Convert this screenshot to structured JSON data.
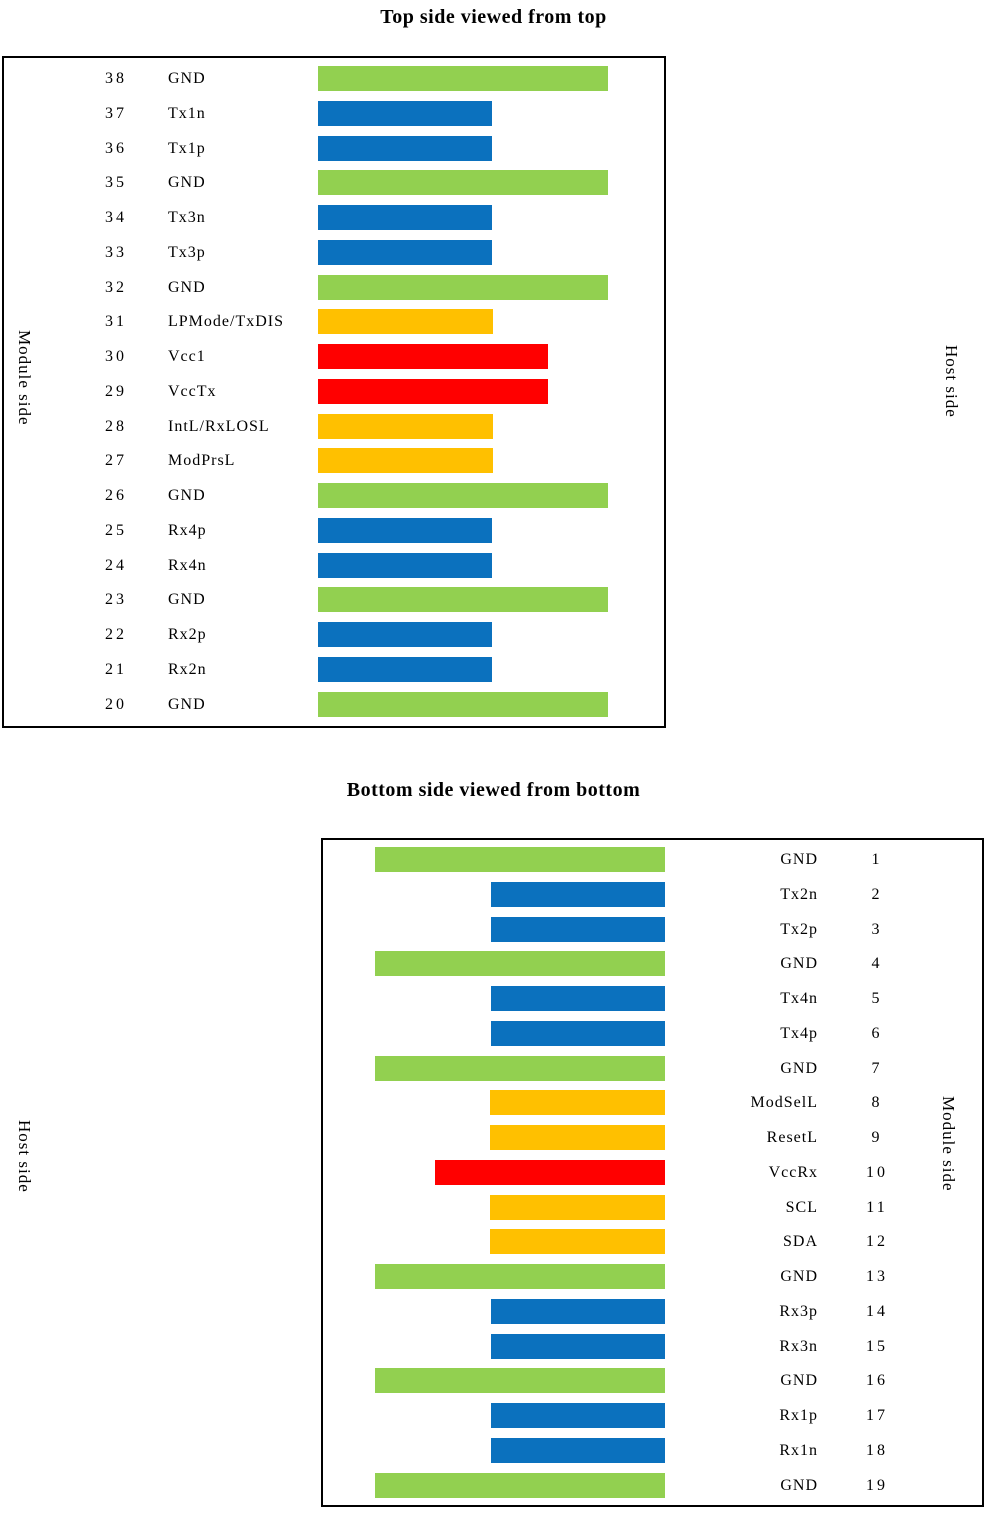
{
  "colors": {
    "green": "#92D050",
    "blue": "#0B71BE",
    "orange": "#FFC000",
    "red": "#FF0000",
    "border": "#000000",
    "text": "#000000"
  },
  "bar_widths": {
    "green": 290,
    "blue": 174,
    "orange": 175,
    "red": 230
  },
  "top_panel": {
    "title": "Top side viewed from top",
    "left_label": "Module side",
    "right_label": "Host side",
    "rows": [
      {
        "pin": "38",
        "name": "GND",
        "color": "green"
      },
      {
        "pin": "37",
        "name": "Tx1n",
        "color": "blue"
      },
      {
        "pin": "36",
        "name": "Tx1p",
        "color": "blue"
      },
      {
        "pin": "35",
        "name": "GND",
        "color": "green"
      },
      {
        "pin": "34",
        "name": "Tx3n",
        "color": "blue"
      },
      {
        "pin": "33",
        "name": "Tx3p",
        "color": "blue"
      },
      {
        "pin": "32",
        "name": "GND",
        "color": "green"
      },
      {
        "pin": "31",
        "name": "LPMode/TxDIS",
        "color": "orange"
      },
      {
        "pin": "30",
        "name": "Vcc1",
        "color": "red"
      },
      {
        "pin": "29",
        "name": "VccTx",
        "color": "red"
      },
      {
        "pin": "28",
        "name": "IntL/RxLOSL",
        "color": "orange"
      },
      {
        "pin": "27",
        "name": "ModPrsL",
        "color": "orange"
      },
      {
        "pin": "26",
        "name": "GND",
        "color": "green"
      },
      {
        "pin": "25",
        "name": "Rx4p",
        "color": "blue"
      },
      {
        "pin": "24",
        "name": "Rx4n",
        "color": "blue"
      },
      {
        "pin": "23",
        "name": "GND",
        "color": "green"
      },
      {
        "pin": "22",
        "name": "Rx2p",
        "color": "blue"
      },
      {
        "pin": "21",
        "name": "Rx2n",
        "color": "blue"
      },
      {
        "pin": "20",
        "name": "GND",
        "color": "green"
      }
    ]
  },
  "bottom_panel": {
    "title": "Bottom side viewed from bottom",
    "left_label": "Host side",
    "right_label": "Module side",
    "rows": [
      {
        "pin": "1",
        "name": "GND",
        "color": "green"
      },
      {
        "pin": "2",
        "name": "Tx2n",
        "color": "blue"
      },
      {
        "pin": "3",
        "name": "Tx2p",
        "color": "blue"
      },
      {
        "pin": "4",
        "name": "GND",
        "color": "green"
      },
      {
        "pin": "5",
        "name": "Tx4n",
        "color": "blue"
      },
      {
        "pin": "6",
        "name": "Tx4p",
        "color": "blue"
      },
      {
        "pin": "7",
        "name": "GND",
        "color": "green"
      },
      {
        "pin": "8",
        "name": "ModSelL",
        "color": "orange"
      },
      {
        "pin": "9",
        "name": "ResetL",
        "color": "orange"
      },
      {
        "pin": "10",
        "name": "VccRx",
        "color": "red"
      },
      {
        "pin": "11",
        "name": "SCL",
        "color": "orange"
      },
      {
        "pin": "12",
        "name": "SDA",
        "color": "orange"
      },
      {
        "pin": "13",
        "name": "GND",
        "color": "green"
      },
      {
        "pin": "14",
        "name": "Rx3p",
        "color": "blue"
      },
      {
        "pin": "15",
        "name": "Rx3n",
        "color": "blue"
      },
      {
        "pin": "16",
        "name": "GND",
        "color": "green"
      },
      {
        "pin": "17",
        "name": "Rx1p",
        "color": "blue"
      },
      {
        "pin": "18",
        "name": "Rx1n",
        "color": "blue"
      },
      {
        "pin": "19",
        "name": "GND",
        "color": "green"
      }
    ]
  }
}
